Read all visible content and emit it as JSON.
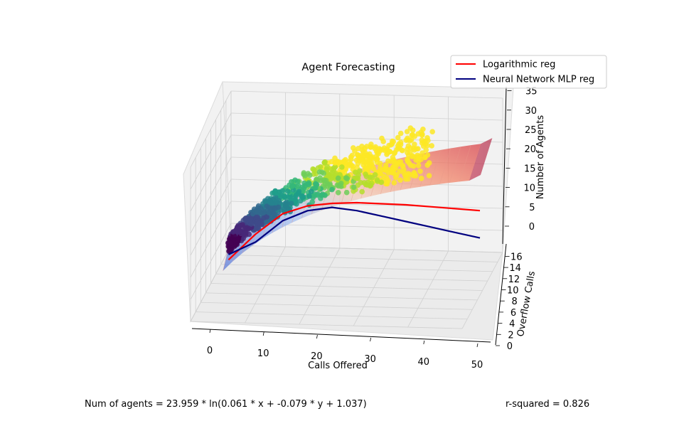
{
  "chart_data": {
    "type": "scatter",
    "title": "Agent Forecasting",
    "xlabel": "Calls Offered",
    "ylabel": "Overflow Calls",
    "zlabel": "Number of Agents",
    "xlim": [
      0,
      50
    ],
    "ylim": [
      0,
      16
    ],
    "zlim": [
      0,
      35
    ],
    "x_ticks": [
      "0",
      "10",
      "20",
      "30",
      "40",
      "50"
    ],
    "y_ticks": [
      "0",
      "2",
      "4",
      "6",
      "8",
      "10",
      "12",
      "14",
      "16"
    ],
    "z_ticks": [
      "0",
      "5",
      "10",
      "15",
      "20",
      "25",
      "30",
      "35"
    ],
    "grid": true,
    "legend_position": "top-right",
    "colormap": "viridis",
    "series": [
      {
        "name": "Logarithmic reg",
        "color": "#ff0000",
        "type": "line",
        "points": [
          [
            0,
            1,
            -2.2
          ],
          [
            5,
            1,
            3.8
          ],
          [
            10,
            1,
            8.6
          ],
          [
            15,
            2,
            11.6
          ],
          [
            20,
            3,
            13.4
          ],
          [
            25,
            4,
            14.8
          ],
          [
            30,
            5,
            15.8
          ],
          [
            35,
            6,
            16.8
          ],
          [
            40,
            7,
            17.6
          ],
          [
            45,
            8,
            18.4
          ],
          [
            50,
            9,
            19.2
          ]
        ]
      },
      {
        "name": "Neural Network MLP reg",
        "color": "#00007f",
        "type": "line",
        "points": [
          [
            0,
            1,
            -1.0
          ],
          [
            5,
            1,
            2.0
          ],
          [
            10,
            1,
            7.0
          ],
          [
            15,
            2,
            10.5
          ],
          [
            20,
            3,
            12.5
          ],
          [
            25,
            4,
            13.0
          ],
          [
            30,
            5,
            13.0
          ],
          [
            35,
            6,
            13.0
          ],
          [
            40,
            7,
            13.0
          ],
          [
            45,
            8,
            13.0
          ],
          [
            50,
            9,
            13.0
          ]
        ]
      }
    ],
    "surface": {
      "name": "Logarithmic fit surface",
      "colormap": "coolwarm"
    },
    "footer_left": "Num of agents = 23.959 * ln(0.061 * x + -0.079 * y + 1.037)",
    "footer_right": "r-squared = 0.826"
  }
}
